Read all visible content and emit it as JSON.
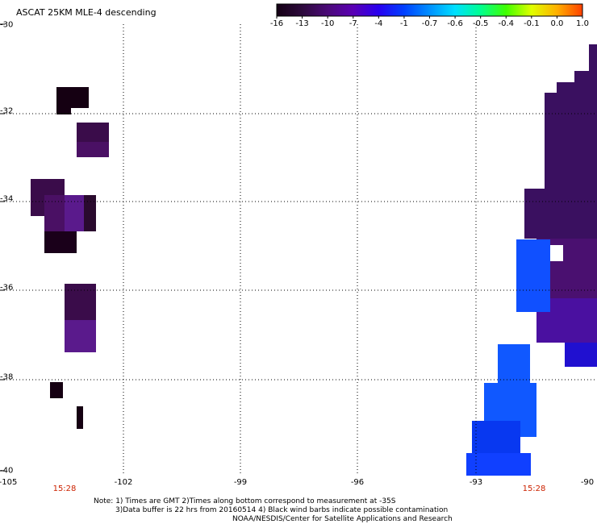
{
  "title": "ASCAT 25KM MLE-4 descending",
  "colorbar": {
    "labels": [
      "-16",
      "-13",
      "-10",
      "-7",
      "-4",
      "-1",
      "-0.7",
      "-0.6",
      "-0.5",
      "-0.4",
      "-0.1",
      "0.0",
      "1.0"
    ],
    "colors": [
      "#140014",
      "#2d0a3c",
      "#4b0a78",
      "#5a00b4",
      "#2800f0",
      "#0040ff",
      "#0090ff",
      "#00e0ff",
      "#00ff90",
      "#40ff00",
      "#e0ff00",
      "#ffb000",
      "#ff4000"
    ]
  },
  "lat_labels": [
    "-30",
    "-32",
    "-34",
    "-36",
    "-38",
    "-40"
  ],
  "lon_labels": [
    "-105",
    "-102",
    "-99",
    "-96",
    "-93",
    "-90"
  ],
  "time_labels": [
    "15:28",
    "15:28"
  ],
  "notes": [
    "Note: 1) Times are GMT 2)Times along bottom correspond to measurement at -35S",
    "3)Data buffer is 22 hrs from 20160514 4) Black wind barbs indicate possible contamination",
    "NOAA/NESDIS/Center for Satellite Applications and Research"
  ],
  "colors": {
    "dark_purple": "#2a0a2e",
    "mid_purple": "#4a1070",
    "purple": "#5a1a8c",
    "violet": "#4a0aa0",
    "blue": "#1050ff",
    "deep_blue": "#1020f0",
    "time_red": "#cc2200"
  }
}
